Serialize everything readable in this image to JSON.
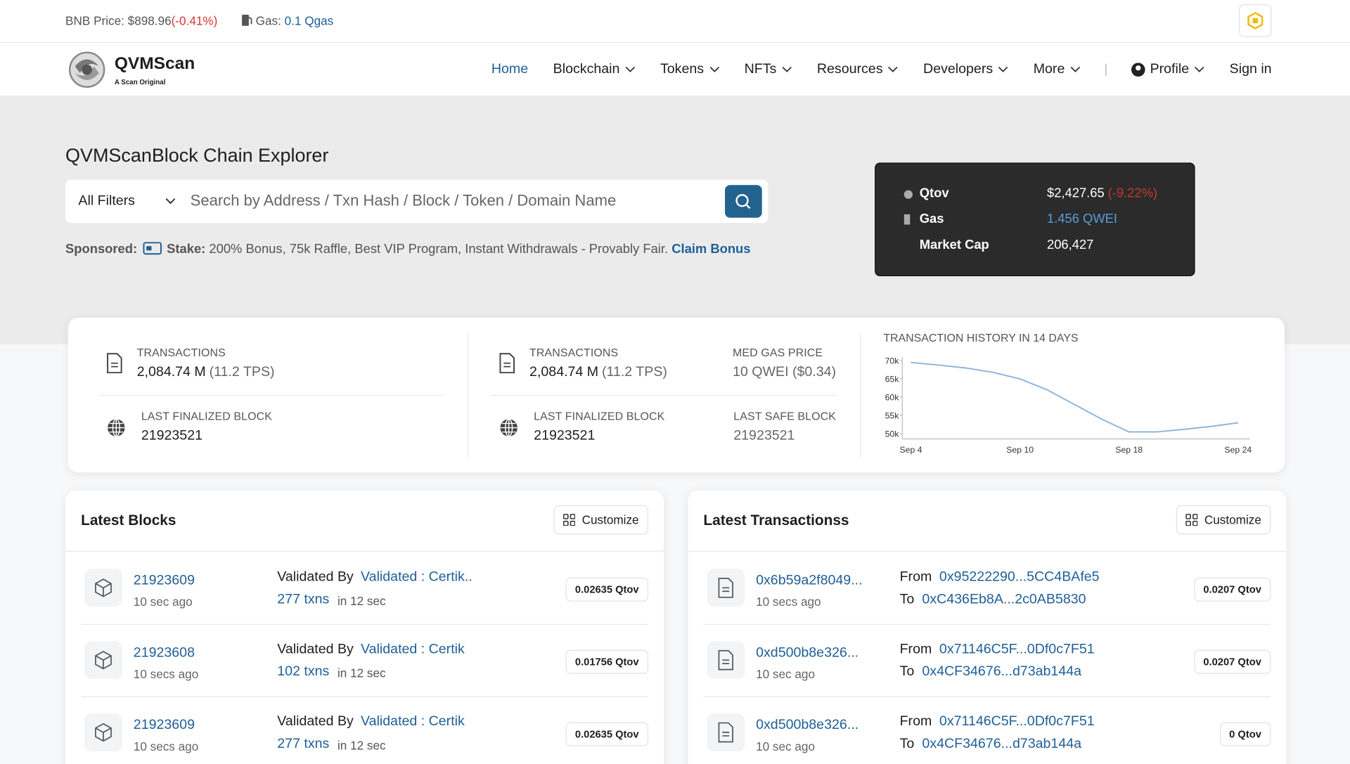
{
  "topbar": {
    "price_label": "BNB Price:",
    "price": "$898.96",
    "price_change": "(-0.41%)",
    "gas_label": "Gas:",
    "gas": "0.1 Qgas"
  },
  "nav": {
    "brand": "QVMScan",
    "tagline": "A Scan Original",
    "items": [
      "Home",
      "Blockchain",
      "Tokens",
      "NFTs",
      "Resources",
      "Developers",
      "More"
    ],
    "profile": "Profile",
    "sign_in": "Sign in"
  },
  "hero": {
    "title": "QVMScanBlock Chain Explorer",
    "filter": "All Filters",
    "search_placeholder": "Search by Address / Txn Hash / Block / Token / Domain Name",
    "sponsored_label": "Sponsored:",
    "sponsor_name": "Stake:",
    "sponsor_text": "200% Bonus, 75k Raffle, Best VIP Program, Instant Withdrawals - Provably Fair.",
    "sponsor_link": "Claim Bonus"
  },
  "market": {
    "rows": [
      {
        "label": "Qtov",
        "value": "$2,427.65",
        "change": "(-9.22%)"
      },
      {
        "label": "Gas",
        "value": "1.456 QWEI"
      },
      {
        "label": "Market Cap",
        "value": "206,427"
      }
    ]
  },
  "stats": {
    "left": {
      "tx_label": "TRANSACTIONS",
      "tx_value": "2,084.74 M",
      "tx_tps": "(11.2 TPS)",
      "block_label": "LAST FINALIZED BLOCK",
      "block_value": "21923521"
    },
    "middle": {
      "tx_label": "TRANSACTIONS",
      "tx_value": "2,084.74 M",
      "tx_tps": "(11.2 TPS)",
      "gas_label": "MED GAS PRICE",
      "gas_value": "10 QWEI ($0.34)",
      "block_label": "LAST FINALIZED BLOCK",
      "block_value": "21923521",
      "safe_label": "LAST SAFE BLOCK",
      "safe_value": "21923521"
    }
  },
  "chart_data": {
    "type": "line",
    "title": "TRANSACTION HISTORY IN 14 DAYS",
    "categories": [
      "Sep 4",
      null,
      null,
      null,
      "Sep 10",
      null,
      null,
      null,
      "Sep 18",
      null,
      null,
      null,
      "Sep 24"
    ],
    "values": [
      69500,
      68800,
      68000,
      66800,
      65000,
      62000,
      58000,
      54000,
      50500,
      50500,
      51200,
      52000,
      53000
    ],
    "color": "#8fb4db",
    "ylim": [
      50000,
      70000
    ],
    "yticks": [
      {
        "value": 50000,
        "label": "50k"
      },
      {
        "value": 55000,
        "label": "55k"
      },
      {
        "value": 60000,
        "label": "60k"
      },
      {
        "value": 65000,
        "label": "65k"
      },
      {
        "value": 70000,
        "label": "70k"
      }
    ]
  },
  "latest_blocks": {
    "title": "Latest Blocks",
    "customize": "Customize",
    "rows": [
      {
        "block": "21923609",
        "age": "10 sec ago",
        "validated_label": "Validated By",
        "validator": "Validated : Certik..",
        "txns": "277 txns",
        "time": "in 12 sec",
        "reward": "0.02635 Qtov"
      },
      {
        "block": "21923608",
        "age": "10 secs ago",
        "validated_label": "Validated By",
        "validator": "Validated : Certik",
        "txns": "102 txns",
        "time": "in 12 sec",
        "reward": "0.01756 Qtov"
      },
      {
        "block": "21923609",
        "age": "10 secs ago",
        "validated_label": "Validated By",
        "validator": "Validated : Certik",
        "txns": "277 txns",
        "time": "in 12 sec",
        "reward": "0.02635 Qtov"
      }
    ]
  },
  "latest_transactions": {
    "title": "Latest Transactionss",
    "customize": "Customize",
    "rows": [
      {
        "hash": "0x6b59a2f8049...",
        "age": "10 secs ago",
        "from_label": "From",
        "from": "0x95222290...5CC4BAfe5",
        "to_label": "To",
        "to": "0xC436Eb8A...2c0AB5830",
        "amount": "0.0207 Qtov"
      },
      {
        "hash": "0xd500b8e326...",
        "age": "10 sec ago",
        "from_label": "From",
        "from": "0x71146C5F...0Df0c7F51",
        "to_label": "To",
        "to": "0x4CF34676...d73ab144a",
        "amount": "0.0207 Qtov"
      },
      {
        "hash": "0xd500b8e326...",
        "age": "10 sec ago",
        "from_label": "From",
        "from": "0x71146C5F...0Df0c7F51",
        "to_label": "To",
        "to": "0x4CF34676...d73ab144a",
        "amount": "0 Qtov"
      }
    ]
  }
}
